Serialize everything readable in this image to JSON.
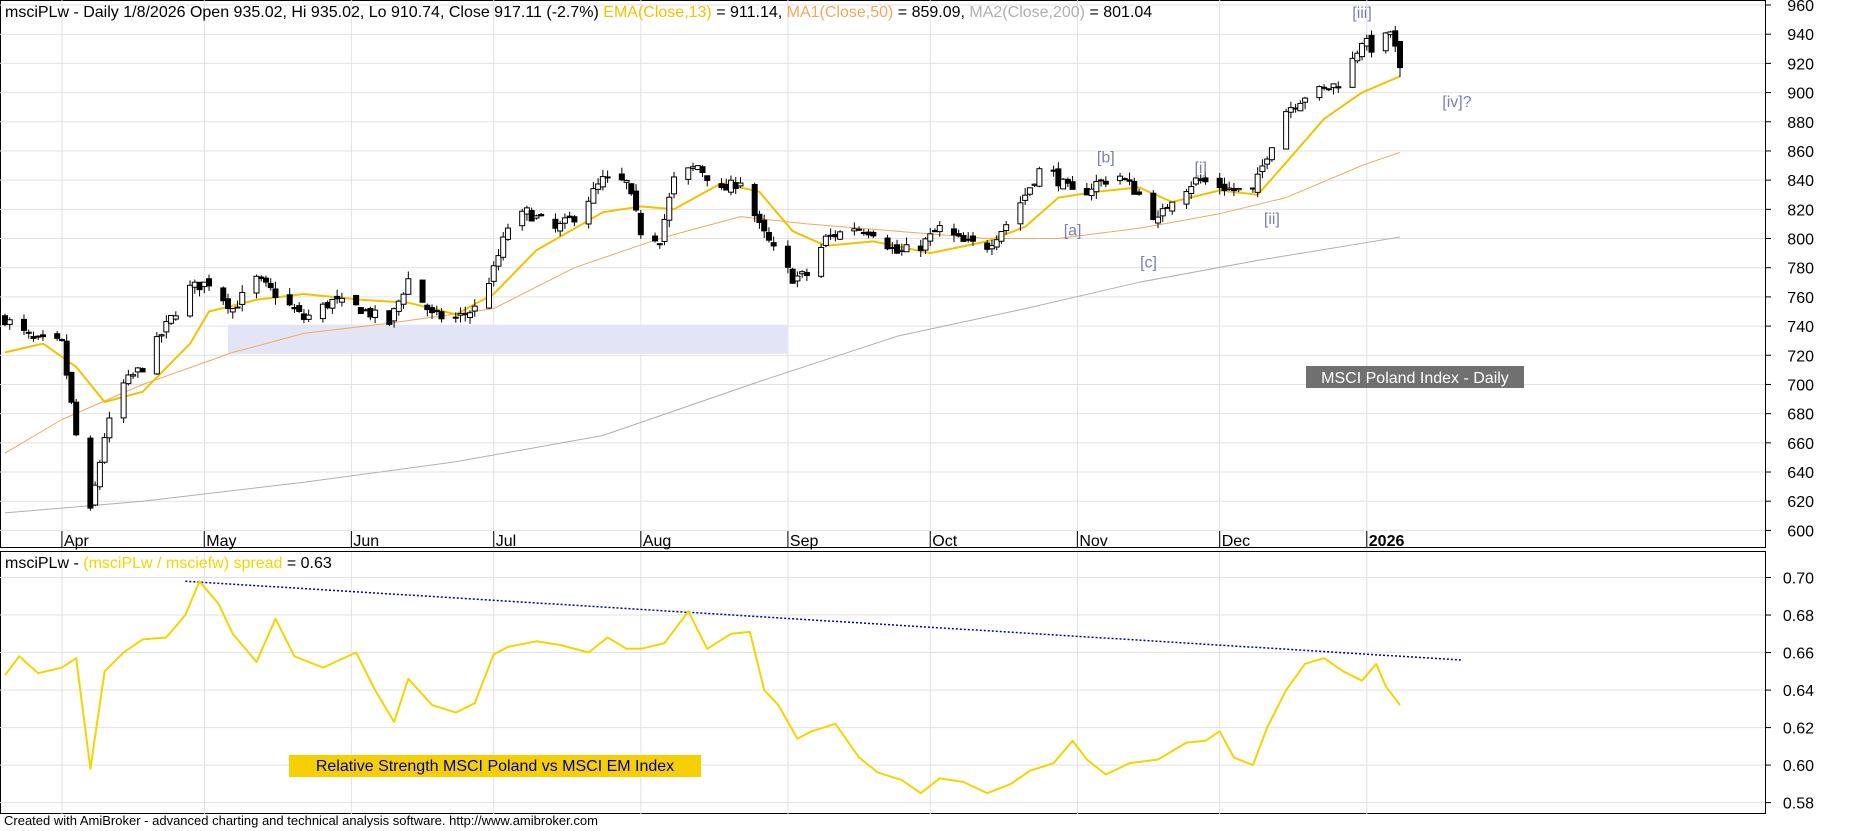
{
  "header_top": {
    "prefix": "msciPLw - Daily 1/8/2026 Open 935.02, Hi 935.02, Lo 910.74, Close 917.11 (-2.7%) ",
    "ema_label": "EMA(Close,13)",
    "ema_value": " = 911.14, ",
    "ma1_label": "MA1(Close,50)",
    "ma1_value": " = 859.09, ",
    "ma2_label": "MA2(Close,200)",
    "ma2_value": " = 801.04"
  },
  "header_bottom": {
    "prefix": "msciPLw - ",
    "spread_label": "(msciPLw / msciefw) spread",
    "spread_value": " = 0.63"
  },
  "top_label": "MSCI Poland Index - Daily",
  "bottom_label": "Relative Strength MSCI Poland vs MSCI EM Index",
  "footer": "Created with AmiBroker - advanced charting and technical analysis software. http://www.amibroker.com",
  "colors": {
    "ema": "#f2c200",
    "ma50": "#f0a860",
    "ma200": "#b0b0b0",
    "spread": "#f5d400",
    "trendline": "#0000aa",
    "zone": "#e3e5f7",
    "wave_labels": "#7a7fb0",
    "label_box": "#707070",
    "rs_label_bg": "#f5cf00"
  },
  "chart_data": [
    {
      "type": "candlestick",
      "title": "msciPLw - Daily",
      "y_range": [
        590,
        960
      ],
      "y_ticks": [
        "960",
        "940",
        "920",
        "900",
        "880",
        "860",
        "840",
        "820",
        "800",
        "780",
        "760",
        "740",
        "720",
        "700",
        "680",
        "660",
        "640",
        "620",
        "600"
      ],
      "x_tick_labels": [
        "Apr",
        "May",
        "Jun",
        "Jul",
        "Aug",
        "Sep",
        "Oct",
        "Nov",
        "Dec",
        "2026"
      ],
      "last_bar": {
        "date": "1/8/2026",
        "open": 935.02,
        "high": 935.02,
        "low": 910.74,
        "close": 917.11
      },
      "moving_averages": [
        {
          "name": "EMA(Close,13)",
          "last": 911.14
        },
        {
          "name": "MA1(Close,50)",
          "last": 859.09
        },
        {
          "name": "MA2(Close,200)",
          "last": 801.04
        }
      ],
      "close_path": [
        [
          "Mar 20",
          745
        ],
        [
          "Mar 26",
          730
        ],
        [
          "Apr 1",
          728
        ],
        [
          "Apr 4",
          665
        ],
        [
          "Apr 7",
          612
        ],
        [
          "Apr 10",
          665
        ],
        [
          "Apr 14",
          700
        ],
        [
          "Apr 18",
          712
        ],
        [
          "Apr 23",
          740
        ],
        [
          "Apr 28",
          766
        ],
        [
          "May 2",
          770
        ],
        [
          "May 7",
          752
        ],
        [
          "May 12",
          772
        ],
        [
          "May 16",
          762
        ],
        [
          "May 22",
          745
        ],
        [
          "May 28",
          757
        ],
        [
          "Jun 3",
          752
        ],
        [
          "Jun 9",
          742
        ],
        [
          "Jun 13",
          772
        ],
        [
          "Jun 18",
          747
        ],
        [
          "Jun 23",
          745
        ],
        [
          "Jun 27",
          752
        ],
        [
          "Jul 1",
          778
        ],
        [
          "Jul 4",
          808
        ],
        [
          "Jul 8",
          818
        ],
        [
          "Jul 14",
          806
        ],
        [
          "Jul 18",
          815
        ],
        [
          "Jul 24",
          840
        ],
        [
          "Jul 29",
          838
        ],
        [
          "Aug 1",
          805
        ],
        [
          "Aug 5",
          800
        ],
        [
          "Aug 8",
          840
        ],
        [
          "Aug 13",
          850
        ],
        [
          "Aug 18",
          832
        ],
        [
          "Aug 22",
          840
        ],
        [
          "Aug 26",
          808
        ],
        [
          "Aug 29",
          792
        ],
        [
          "Sep 2",
          773
        ],
        [
          "Sep 5",
          775
        ],
        [
          "Sep 9",
          800
        ],
        [
          "Sep 15",
          808
        ],
        [
          "Sep 19",
          805
        ],
        [
          "Sep 24",
          790
        ],
        [
          "Sep 29",
          795
        ],
        [
          "Oct 3",
          807
        ],
        [
          "Oct 8",
          797
        ],
        [
          "Oct 13",
          795
        ],
        [
          "Oct 17",
          810
        ],
        [
          "Oct 21",
          830
        ],
        [
          "Oct 25",
          852
        ],
        [
          "Oct 28",
          840
        ],
        [
          "Nov 1",
          828
        ],
        [
          "Nov 5",
          838
        ],
        [
          "Nov 10",
          843
        ],
        [
          "Nov 14",
          830
        ],
        [
          "Nov 18",
          812
        ],
        [
          "Nov 21",
          828
        ],
        [
          "Nov 26",
          840
        ],
        [
          "Nov 30",
          837
        ],
        [
          "Dec 4",
          833
        ],
        [
          "Dec 8",
          832
        ],
        [
          "Dec 11",
          858
        ],
        [
          "Dec 15",
          888
        ],
        [
          "Dec 19",
          898
        ],
        [
          "Dec 23",
          902
        ],
        [
          "Dec 27",
          908
        ],
        [
          "Dec 31",
          936
        ],
        [
          "Jan 3",
          928
        ],
        [
          "Jan 6",
          942
        ],
        [
          "Jan 8",
          917
        ]
      ],
      "ema13_path": [
        [
          "Mar 20",
          722
        ],
        [
          "Mar 28",
          728
        ],
        [
          "Apr 4",
          712
        ],
        [
          "Apr 10",
          688
        ],
        [
          "Apr 18",
          695
        ],
        [
          "Apr 28",
          728
        ],
        [
          "May 2",
          750
        ],
        [
          "May 12",
          758
        ],
        [
          "May 22",
          762
        ],
        [
          "Jun 3",
          758
        ],
        [
          "Jun 13",
          756
        ],
        [
          "Jun 23",
          748
        ],
        [
          "Jul 1",
          762
        ],
        [
          "Jul 10",
          792
        ],
        [
          "Jul 24",
          818
        ],
        [
          "Aug 1",
          822
        ],
        [
          "Aug 8",
          820
        ],
        [
          "Aug 18",
          838
        ],
        [
          "Aug 26",
          832
        ],
        [
          "Sep 2",
          805
        ],
        [
          "Sep 9",
          795
        ],
        [
          "Sep 19",
          798
        ],
        [
          "Oct 1",
          790
        ],
        [
          "Oct 13",
          798
        ],
        [
          "Oct 21",
          808
        ],
        [
          "Oct 28",
          828
        ],
        [
          "Nov 5",
          832
        ],
        [
          "Nov 14",
          835
        ],
        [
          "Nov 21",
          825
        ],
        [
          "Dec 1",
          833
        ],
        [
          "Dec 9",
          830
        ],
        [
          "Dec 15",
          852
        ],
        [
          "Dec 23",
          882
        ],
        [
          "Dec 31",
          900
        ],
        [
          "Jan 8",
          911.14
        ]
      ],
      "ma50_path": [
        [
          "Mar 20",
          653
        ],
        [
          "Apr 1",
          676
        ],
        [
          "Apr 18",
          700
        ],
        [
          "May 7",
          722
        ],
        [
          "May 22",
          735
        ],
        [
          "Jun 9",
          742
        ],
        [
          "Jul 1",
          752
        ],
        [
          "Jul 18",
          780
        ],
        [
          "Aug 5",
          800
        ],
        [
          "Aug 22",
          815
        ],
        [
          "Sep 5",
          810
        ],
        [
          "Sep 24",
          805
        ],
        [
          "Oct 13",
          800
        ],
        [
          "Oct 28",
          800
        ],
        [
          "Nov 14",
          807
        ],
        [
          "Dec 1",
          817
        ],
        [
          "Dec 15",
          828
        ],
        [
          "Dec 31",
          850
        ],
        [
          "Jan 8",
          859.09
        ]
      ],
      "ma200_path": [
        [
          "Mar 20",
          612
        ],
        [
          "Apr 18",
          620
        ],
        [
          "May 22",
          633
        ],
        [
          "Jun 23",
          647
        ],
        [
          "Jul 24",
          665
        ],
        [
          "Aug 26",
          702
        ],
        [
          "Sep 24",
          733
        ],
        [
          "Oct 21",
          752
        ],
        [
          "Nov 14",
          770
        ],
        [
          "Dec 9",
          785
        ],
        [
          "Jan 8",
          801.04
        ]
      ],
      "support_zone": {
        "from": "May 6",
        "to": "Sep 1",
        "low": 721,
        "high": 741
      },
      "wave_labels": [
        {
          "text": "[iii]",
          "date": "Dec 31",
          "value": 951
        },
        {
          "text": "[iv]?",
          "date": "Jan 20",
          "value": 890
        },
        {
          "text": "[b]",
          "date": "Nov 7",
          "value": 852
        },
        {
          "text": "[i]",
          "date": "Nov 27",
          "value": 845
        },
        {
          "text": "[a]",
          "date": "Oct 31",
          "value": 802
        },
        {
          "text": "[ii]",
          "date": "Dec 12",
          "value": 810
        },
        {
          "text": "[c]",
          "date": "Nov 16",
          "value": 780
        }
      ]
    },
    {
      "type": "line",
      "title": "(msciPLw / msciefw) spread",
      "y_range": [
        0.575,
        0.712
      ],
      "y_ticks": [
        "0.70",
        "0.68",
        "0.66",
        "0.64",
        "0.62",
        "0.60",
        "0.58"
      ],
      "last_value": 0.63,
      "series": [
        {
          "name": "(msciPLw / msciefw) spread",
          "points": [
            [
              "Mar 20",
              0.648
            ],
            [
              "Mar 23",
              0.658
            ],
            [
              "Mar 27",
              0.649
            ],
            [
              "Apr 1",
              0.652
            ],
            [
              "Apr 4",
              0.657
            ],
            [
              "Apr 7",
              0.598
            ],
            [
              "Apr 10",
              0.65
            ],
            [
              "Apr 14",
              0.66
            ],
            [
              "Apr 18",
              0.667
            ],
            [
              "Apr 23",
              0.668
            ],
            [
              "Apr 27",
              0.68
            ],
            [
              "Apr 30",
              0.698
            ],
            [
              "May 4",
              0.686
            ],
            [
              "May 7",
              0.67
            ],
            [
              "May 12",
              0.655
            ],
            [
              "May 16",
              0.678
            ],
            [
              "May 20",
              0.658
            ],
            [
              "May 26",
              0.652
            ],
            [
              "Jun 2",
              0.66
            ],
            [
              "Jun 6",
              0.64
            ],
            [
              "Jun 10",
              0.623
            ],
            [
              "Jun 13",
              0.646
            ],
            [
              "Jun 18",
              0.632
            ],
            [
              "Jun 23",
              0.628
            ],
            [
              "Jun 27",
              0.633
            ],
            [
              "Jul 1",
              0.659
            ],
            [
              "Jul 4",
              0.663
            ],
            [
              "Jul 10",
              0.666
            ],
            [
              "Jul 15",
              0.664
            ],
            [
              "Jul 21",
              0.66
            ],
            [
              "Jul 25",
              0.668
            ],
            [
              "Jul 29",
              0.662
            ],
            [
              "Aug 1",
              0.662
            ],
            [
              "Aug 6",
              0.665
            ],
            [
              "Aug 11",
              0.682
            ],
            [
              "Aug 15",
              0.662
            ],
            [
              "Aug 20",
              0.67
            ],
            [
              "Aug 24",
              0.671
            ],
            [
              "Aug 27",
              0.64
            ],
            [
              "Aug 30",
              0.632
            ],
            [
              "Sep 3",
              0.614
            ],
            [
              "Sep 6",
              0.618
            ],
            [
              "Sep 11",
              0.622
            ],
            [
              "Sep 16",
              0.604
            ],
            [
              "Sep 20",
              0.596
            ],
            [
              "Sep 25",
              0.592
            ],
            [
              "Sep 29",
              0.585
            ],
            [
              "Oct 3",
              0.593
            ],
            [
              "Oct 8",
              0.591
            ],
            [
              "Oct 13",
              0.585
            ],
            [
              "Oct 18",
              0.59
            ],
            [
              "Oct 22",
              0.597
            ],
            [
              "Oct 27",
              0.601
            ],
            [
              "Oct 31",
              0.613
            ],
            [
              "Nov 3",
              0.603
            ],
            [
              "Nov 7",
              0.595
            ],
            [
              "Nov 12",
              0.601
            ],
            [
              "Nov 18",
              0.603
            ],
            [
              "Nov 24",
              0.612
            ],
            [
              "Nov 28",
              0.613
            ],
            [
              "Dec 1",
              0.618
            ],
            [
              "Dec 4",
              0.604
            ],
            [
              "Dec 8",
              0.6
            ],
            [
              "Dec 11",
              0.62
            ],
            [
              "Dec 15",
              0.64
            ],
            [
              "Dec 19",
              0.654
            ],
            [
              "Dec 23",
              0.657
            ],
            [
              "Dec 27",
              0.65
            ],
            [
              "Dec 31",
              0.645
            ],
            [
              "Jan 3",
              0.654
            ],
            [
              "Jan 5",
              0.642
            ],
            [
              "Jan 8",
              0.632
            ]
          ]
        }
      ],
      "trendline": [
        [
          "Apr 27",
          0.698
        ],
        [
          "Jan 21",
          0.656
        ]
      ]
    }
  ]
}
